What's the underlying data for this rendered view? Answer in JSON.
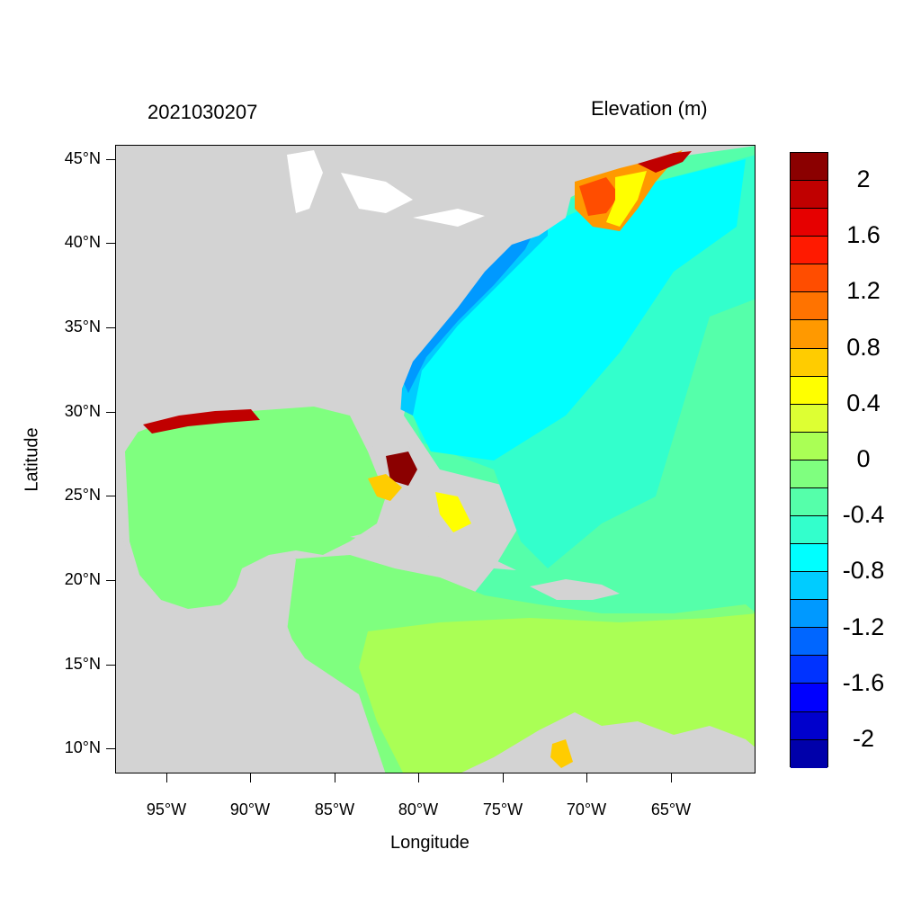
{
  "map": {
    "timestamp": "2021030207",
    "variable_title": "Elevation (m)",
    "x_axis_label": "Longitude",
    "y_axis_label": "Latitude",
    "lat_ticks": [
      "45°N",
      "40°N",
      "35°N",
      "30°N",
      "25°N",
      "20°N",
      "15°N",
      "10°N"
    ],
    "lon_ticks": [
      "95°W",
      "90°W",
      "85°W",
      "80°W",
      "75°W",
      "70°W",
      "65°W"
    ],
    "land_color": "#d3d3d3",
    "colorbar": {
      "colors": [
        "#8b0000",
        "#c00000",
        "#e60000",
        "#ff1a00",
        "#ff4d00",
        "#ff7300",
        "#ff9900",
        "#ffcc00",
        "#ffff00",
        "#ddff33",
        "#aaff55",
        "#7fff7f",
        "#55ffaa",
        "#33ffcc",
        "#00ffff",
        "#00ccff",
        "#0099ff",
        "#0066ff",
        "#0033ff",
        "#0000ff",
        "#0000cc",
        "#0000aa"
      ],
      "labels": [
        "2",
        "1.6",
        "1.2",
        "0.8",
        "0.4",
        "0",
        "-0.4",
        "-0.8",
        "-1.2",
        "-1.6",
        "-2"
      ]
    }
  }
}
